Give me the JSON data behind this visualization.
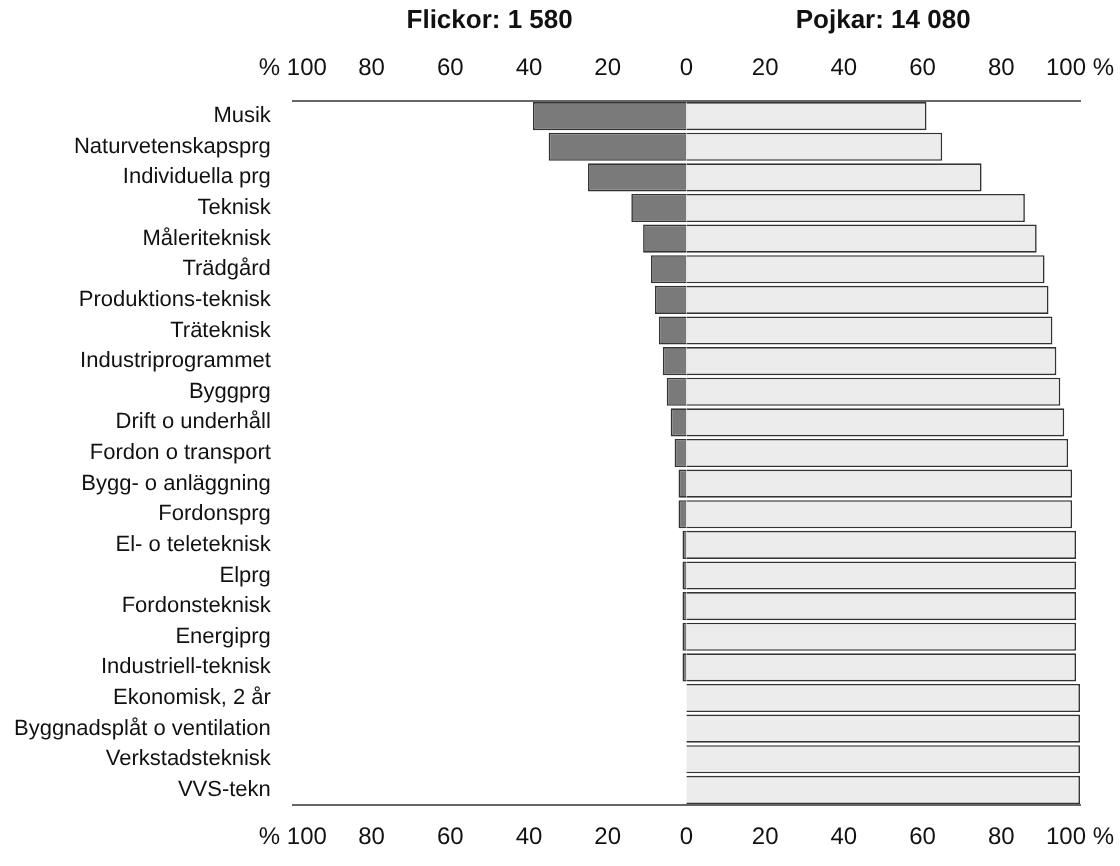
{
  "chart_data": {
    "type": "bar",
    "orientation": "horizontal",
    "stacked": true,
    "categories": [
      "Musik",
      "Naturvetenskapsprg",
      "Individuella prg",
      "Teknisk",
      "Måleriteknisk",
      "Trädgård",
      "Produktions-teknisk",
      "Träteknisk",
      "Industriprogrammet",
      "Byggprg",
      "Drift o underhåll",
      "Fordon o transport",
      "Bygg- o anläggning",
      "Fordonsprg",
      "El- o teleteknisk",
      "Elprg",
      "Fordonsteknisk",
      "Energiprg",
      "Industriell-teknisk",
      "Ekonomisk, 2 år",
      "Byggnadsplåt o ventilation",
      "Verkstadsteknisk",
      "VVS-tekn"
    ],
    "series": [
      {
        "name": "Flickor: 1 580",
        "color": "#7a7a7a",
        "values": [
          -39,
          -35,
          -25,
          -14,
          -11,
          -9,
          -8,
          -7,
          -6,
          -5,
          -4,
          -3,
          -2,
          -2,
          -1,
          -1,
          -1,
          -1,
          -1,
          0,
          0,
          0,
          0
        ]
      },
      {
        "name": "Pojkar: 14 080",
        "color": "#ececec",
        "values": [
          61,
          65,
          75,
          86,
          89,
          91,
          92,
          93,
          94,
          95,
          96,
          97,
          98,
          98,
          99,
          99,
          99,
          99,
          99,
          100,
          100,
          100,
          100
        ]
      }
    ],
    "xlim": [
      -100,
      100
    ],
    "xticks": [
      {
        "value": -100,
        "label": "% 100"
      },
      {
        "value": -80,
        "label": "80"
      },
      {
        "value": -60,
        "label": "60"
      },
      {
        "value": -40,
        "label": "40"
      },
      {
        "value": -20,
        "label": "20"
      },
      0,
      20,
      40,
      60,
      80,
      {
        "value": 100,
        "label": "100 %"
      }
    ],
    "x2lim": [
      -100,
      100
    ],
    "x2ticks": [
      {
        "value": -100,
        "label": "% 100"
      },
      {
        "value": -80,
        "label": "80"
      },
      {
        "value": -60,
        "label": "60"
      },
      {
        "value": -40,
        "label": "40"
      },
      {
        "value": -20,
        "label": "20"
      },
      0,
      20,
      40,
      60,
      80,
      {
        "value": 100,
        "label": "100 %"
      }
    ],
    "grid": false,
    "legend": "top"
  }
}
